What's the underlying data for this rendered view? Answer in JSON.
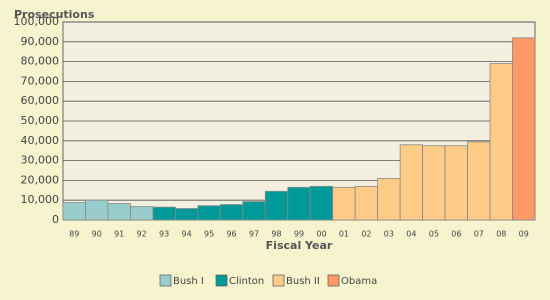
{
  "chart_data": {
    "type": "bar",
    "y_label": "Prosecutions",
    "x_label": "Fiscal Year",
    "categories": [
      "89",
      "90",
      "91",
      "92",
      "93",
      "94",
      "95",
      "96",
      "97",
      "98",
      "99",
      "00",
      "01",
      "02",
      "03",
      "04",
      "05",
      "06",
      "07",
      "08",
      "09"
    ],
    "series": [
      {
        "name": "Bush I",
        "color": "#99cccc",
        "values": [
          8800,
          10000,
          8300,
          6800,
          null,
          null,
          null,
          null,
          null,
          null,
          null,
          null,
          null,
          null,
          null,
          null,
          null,
          null,
          null,
          null,
          null
        ]
      },
      {
        "name": "Clinton",
        "color": "#009999",
        "values": [
          null,
          null,
          null,
          null,
          6500,
          5800,
          7200,
          7800,
          9300,
          14500,
          16500,
          17000,
          null,
          null,
          null,
          null,
          null,
          null,
          null,
          null,
          null
        ]
      },
      {
        "name": "Bush II",
        "color": "#ffcc88",
        "values": [
          null,
          null,
          null,
          null,
          null,
          null,
          null,
          null,
          null,
          null,
          null,
          null,
          16500,
          17000,
          21000,
          38000,
          37500,
          37500,
          39500,
          79000,
          null
        ]
      },
      {
        "name": "Obama",
        "color": "#ff9966",
        "values": [
          null,
          null,
          null,
          null,
          null,
          null,
          null,
          null,
          null,
          null,
          null,
          null,
          null,
          null,
          null,
          null,
          null,
          null,
          null,
          null,
          92000
        ]
      }
    ],
    "ylim": [
      0,
      100000
    ],
    "yticks": [
      0,
      {
        "value": 10000,
        "label": "10,000"
      },
      {
        "value": 20000,
        "label": "20,000"
      },
      {
        "value": 30000,
        "label": "30,000"
      },
      {
        "value": 40000,
        "label": "40,000"
      },
      {
        "value": 50000,
        "label": "50,000"
      },
      {
        "value": 60000,
        "label": "60,000"
      },
      {
        "value": 70000,
        "label": "70,000"
      },
      {
        "value": 80000,
        "label": "80,000"
      },
      {
        "value": 90000,
        "label": "90,000"
      },
      {
        "value": 100000,
        "label": "100,000"
      }
    ],
    "grid": true,
    "legend": "bottom"
  }
}
